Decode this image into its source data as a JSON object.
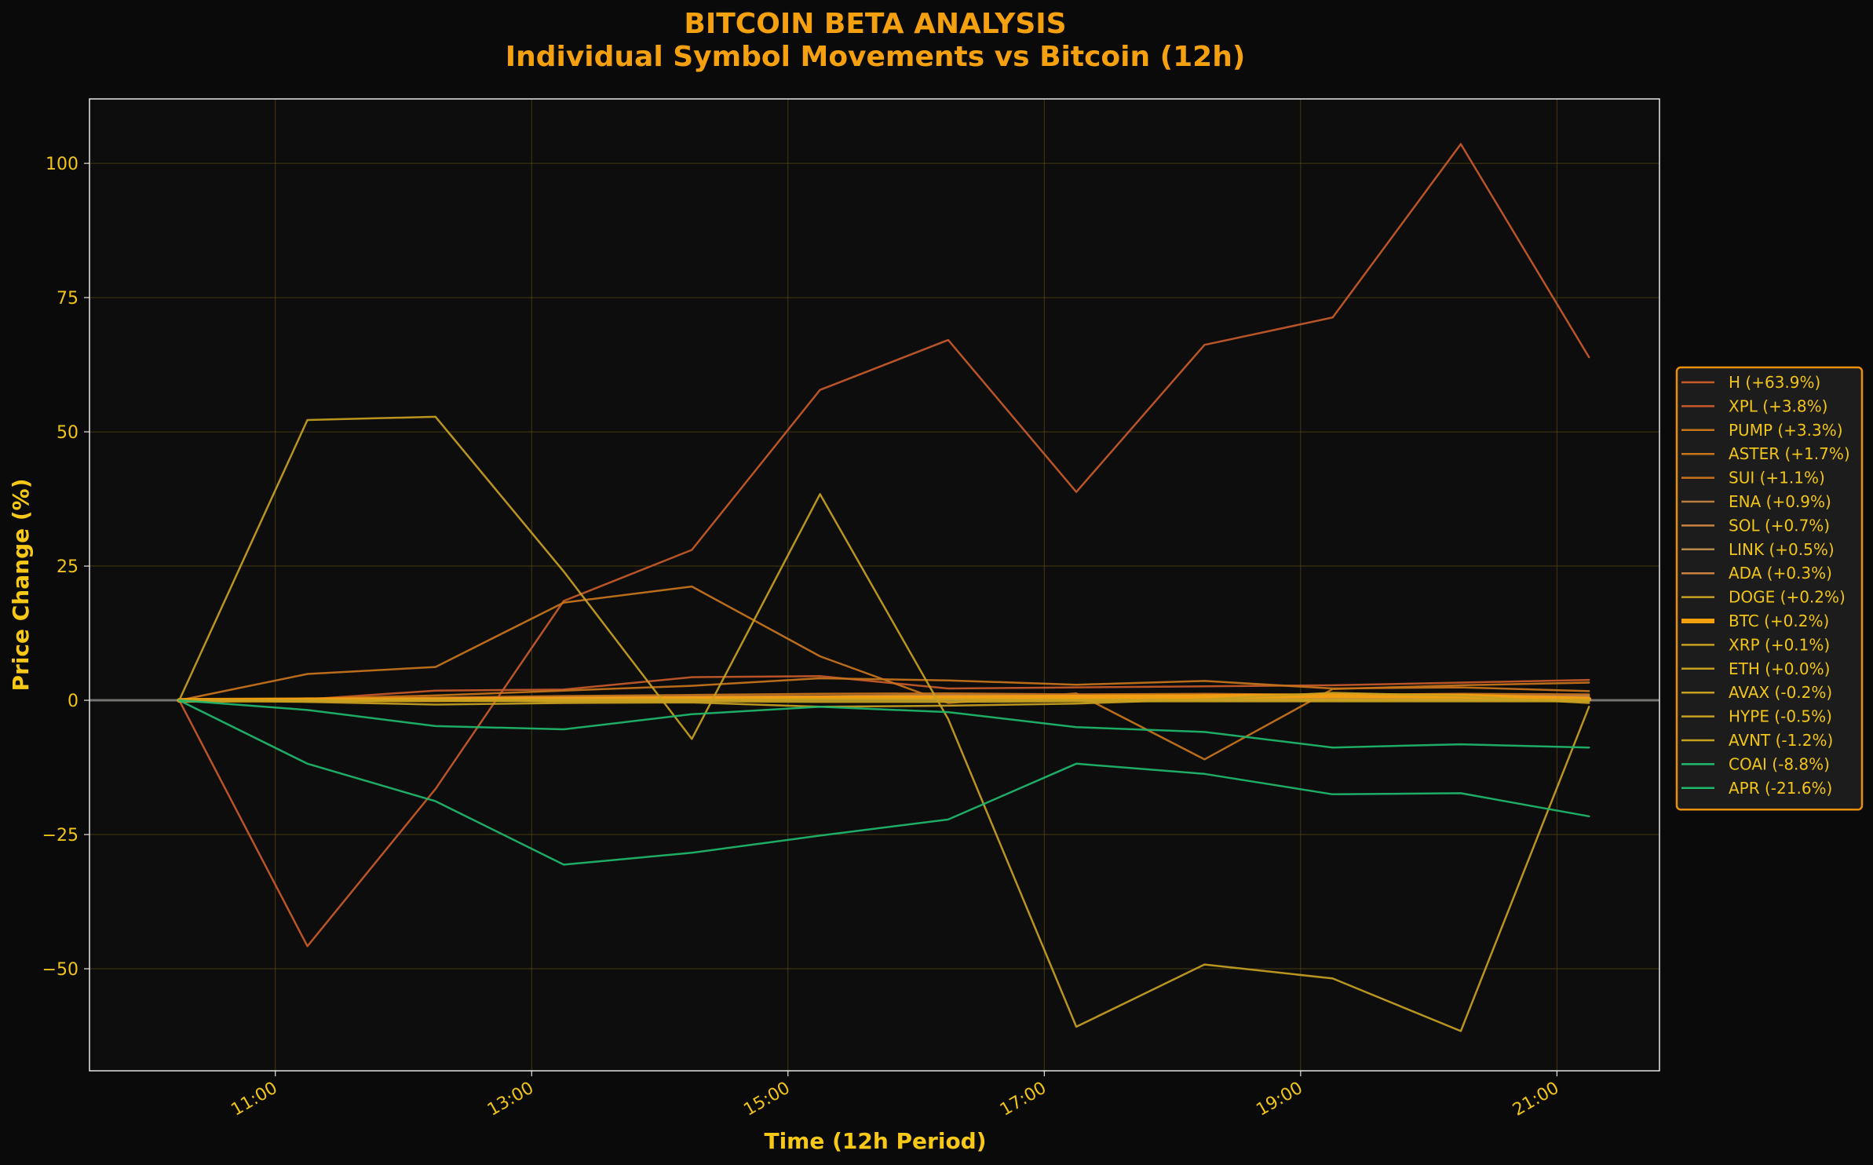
{
  "chart_data": {
    "type": "line",
    "title": "BITCOIN BETA ANALYSIS",
    "subtitle": "Individual Symbol Movements vs Bitcoin (12h)",
    "xlabel": "Time (12h Period)",
    "ylabel": "Price Change (%)",
    "x_ticks": [
      "11:00",
      "13:00",
      "15:00",
      "17:00",
      "19:00",
      "21:00"
    ],
    "x_tick_hours": [
      11,
      13,
      15,
      17,
      19,
      21
    ],
    "x_hours": [
      10.25,
      11.25,
      12.25,
      13.25,
      14.25,
      15.25,
      16.25,
      17.25,
      18.25,
      19.25,
      20.25,
      21.25
    ],
    "y_ticks": [
      100,
      75,
      50,
      25,
      0,
      -25,
      -50
    ],
    "xlim": [
      9.55,
      21.8
    ],
    "ylim": [
      -69,
      112
    ],
    "grid": true,
    "legend_position": "right",
    "series": [
      {
        "name": "H (+63.9%)",
        "color": "#c85a2a",
        "width": 2.5,
        "values": [
          0,
          -45.8,
          -16.5,
          18.5,
          28,
          57.8,
          67.1,
          38.8,
          66.2,
          71.3,
          103.6,
          63.9
        ]
      },
      {
        "name": "XPL (+3.8%)",
        "color": "#c85a2a",
        "width": 2.5,
        "values": [
          0,
          0.2,
          1.8,
          2,
          4.3,
          4.5,
          2.2,
          2.4,
          2.6,
          2.8,
          3.3,
          3.8
        ]
      },
      {
        "name": "PUMP (+3.3%)",
        "color": "#c8741a",
        "width": 2.5,
        "values": [
          0,
          4.9,
          6.2,
          18.2,
          21.2,
          8.2,
          -0.5,
          1.3,
          -11,
          2.1,
          2.8,
          3.3
        ]
      },
      {
        "name": "ASTER (+1.7%)",
        "color": "#c8741a",
        "width": 2.5,
        "values": [
          0,
          0.3,
          0.9,
          1.8,
          2.7,
          4.1,
          3.7,
          2.9,
          3.6,
          2.2,
          2.4,
          1.7
        ]
      },
      {
        "name": "SUI (+1.1%)",
        "color": "#c8741a",
        "width": 2.5,
        "values": [
          0,
          0.2,
          0.5,
          0.8,
          1,
          1.2,
          1.3,
          1.1,
          1.2,
          1,
          1.2,
          1.1
        ]
      },
      {
        "name": "ENA (+0.9%)",
        "color": "#b87a3e",
        "width": 2.5,
        "values": [
          0,
          0.2,
          0.4,
          0.6,
          0.7,
          0.8,
          1,
          0.9,
          0.9,
          0.8,
          0.9,
          0.9
        ]
      },
      {
        "name": "SOL (+0.7%)",
        "color": "#c8823e",
        "width": 2.5,
        "values": [
          0,
          0.1,
          0.3,
          0.5,
          0.6,
          0.7,
          0.8,
          0.7,
          0.7,
          0.6,
          0.7,
          0.7
        ]
      },
      {
        "name": "LINK (+0.5%)",
        "color": "#b88a4a",
        "width": 2.5,
        "values": [
          0,
          0.1,
          0.2,
          0.3,
          0.4,
          0.5,
          0.6,
          0.5,
          0.5,
          0.4,
          0.5,
          0.5
        ]
      },
      {
        "name": "ADA (+0.3%)",
        "color": "#c8823e",
        "width": 2.5,
        "values": [
          0,
          0.1,
          0.1,
          0.2,
          0.3,
          0.3,
          0.4,
          0.3,
          0.3,
          0.3,
          0.3,
          0.3
        ]
      },
      {
        "name": "DOGE (+0.2%)",
        "color": "#c8a020",
        "width": 2.5,
        "values": [
          0,
          0.1,
          0.1,
          0.2,
          0.2,
          0.3,
          0.3,
          0.2,
          0.2,
          0.2,
          0.2,
          0.2
        ]
      },
      {
        "name": "BTC (+0.2%)",
        "color": "#f5a00f",
        "width": 6,
        "values": [
          0,
          0.1,
          0.1,
          0.2,
          0.3,
          0.4,
          0.5,
          0.6,
          0.7,
          0.9,
          0.8,
          0.2
        ]
      },
      {
        "name": "XRP (+0.1%)",
        "color": "#c8a020",
        "width": 2.5,
        "values": [
          0,
          0,
          0.1,
          0.1,
          0.1,
          0.2,
          0.2,
          0.1,
          0.1,
          0.1,
          0.1,
          0.1
        ]
      },
      {
        "name": "ETH (+0.0%)",
        "color": "#c8a020",
        "width": 2.5,
        "values": [
          0,
          0,
          0,
          0.1,
          0.1,
          0.1,
          0.1,
          0,
          0,
          0,
          0,
          0
        ]
      },
      {
        "name": "AVAX (-0.2%)",
        "color": "#c8a020",
        "width": 2.5,
        "values": [
          0,
          -0.1,
          -0.1,
          -0.2,
          -0.2,
          -0.3,
          -0.3,
          -0.2,
          -0.2,
          -0.2,
          -0.2,
          -0.2
        ]
      },
      {
        "name": "HYPE (-0.5%)",
        "color": "#c8a020",
        "width": 2.5,
        "values": [
          0,
          -0.3,
          -0.8,
          -0.5,
          -0.4,
          -1.2,
          -1,
          -0.6,
          0.2,
          1.4,
          0.8,
          -0.5
        ]
      },
      {
        "name": "AVNT (-1.2%)",
        "color": "#c8a020",
        "width": 2.5,
        "values": [
          0,
          52.2,
          52.8,
          24,
          -7.2,
          38.4,
          -3.5,
          -60.8,
          -49.2,
          -51.8,
          -61.6,
          -1.2
        ]
      },
      {
        "name": "COAI (-8.8%)",
        "color": "#1eb96e",
        "width": 2.5,
        "values": [
          0,
          -1.8,
          -4.8,
          -5.4,
          -2.6,
          -1.2,
          -2.2,
          -5,
          -5.9,
          -8.8,
          -8.2,
          -8.8
        ]
      },
      {
        "name": "APR (-21.6%)",
        "color": "#1eb96e",
        "width": 2.5,
        "values": [
          0,
          -11.8,
          -18.8,
          -30.6,
          -28.4,
          -25.2,
          -22.2,
          -11.8,
          -13.7,
          -17.5,
          -17.3,
          -21.6
        ]
      }
    ]
  }
}
